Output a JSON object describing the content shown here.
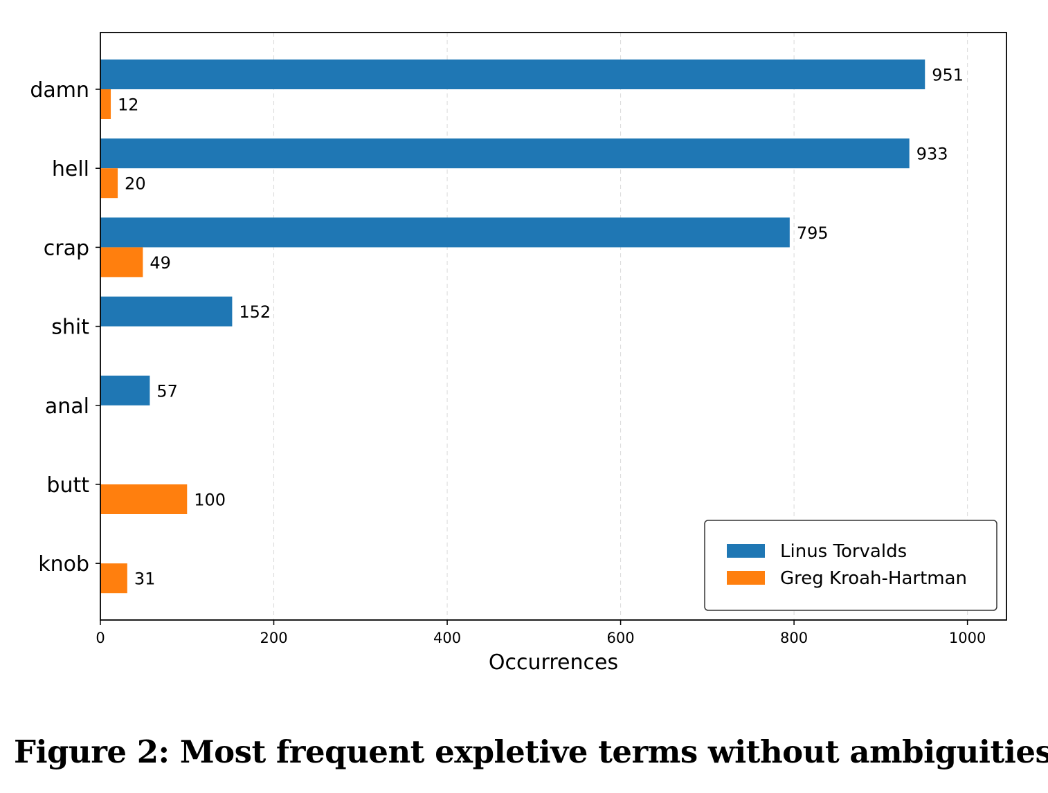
{
  "caption": "Figure 2: Most frequent expletive terms without ambiguities.",
  "chart_data": {
    "type": "bar",
    "orientation": "horizontal",
    "title": "",
    "xlabel": "Occurrences",
    "ylabel": "",
    "xlim": [
      0,
      1045
    ],
    "xticks": [
      0,
      200,
      400,
      600,
      800,
      1000
    ],
    "grid": "x-dashed",
    "legend_position": "lower-right",
    "categories": [
      "damn",
      "hell",
      "crap",
      "shit",
      "anal",
      "butt",
      "knob"
    ],
    "series": [
      {
        "name": "Linus Torvalds",
        "color": "#1f77b4",
        "values": [
          951,
          933,
          795,
          152,
          57,
          null,
          null
        ]
      },
      {
        "name": "Greg Kroah-Hartman",
        "color": "#ff7f0e",
        "values": [
          12,
          20,
          49,
          null,
          null,
          100,
          31
        ]
      }
    ]
  }
}
